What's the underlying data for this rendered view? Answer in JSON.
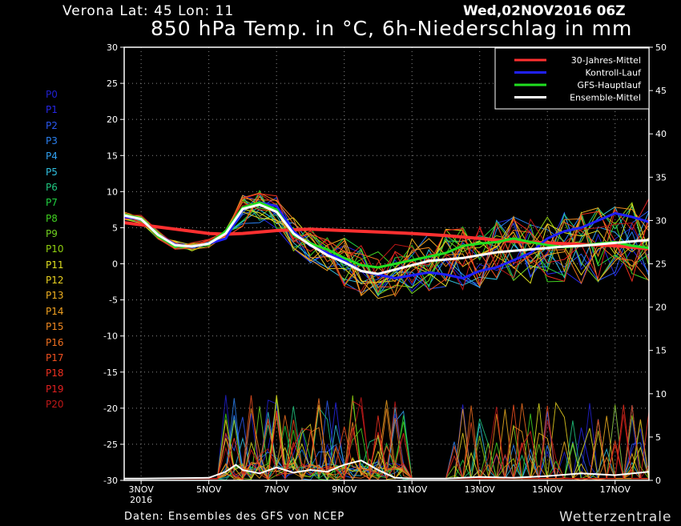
{
  "header": {
    "location": "Verona   Lat: 45 Lon: 11",
    "date": "Wed,02NOV2016 06Z",
    "title": "850 hPa Temp. in °C, 6h-Niederschlag in mm"
  },
  "footer": {
    "source": "Daten: Ensembles des GFS von NCEP",
    "brand": "Wetterzentrale"
  },
  "members": [
    {
      "label": "P0",
      "color": "#2020d0"
    },
    {
      "label": "P1",
      "color": "#2626e6"
    },
    {
      "label": "P2",
      "color": "#2a58f0"
    },
    {
      "label": "P3",
      "color": "#2a80f0"
    },
    {
      "label": "P4",
      "color": "#30a0f0"
    },
    {
      "label": "P5",
      "color": "#30c0e0"
    },
    {
      "label": "P6",
      "color": "#20c880"
    },
    {
      "label": "P7",
      "color": "#20d040"
    },
    {
      "label": "P8",
      "color": "#40d020"
    },
    {
      "label": "P9",
      "color": "#70d020"
    },
    {
      "label": "P10",
      "color": "#90d010"
    },
    {
      "label": "P11",
      "color": "#e0e020"
    },
    {
      "label": "P12",
      "color": "#e8d020"
    },
    {
      "label": "P13",
      "color": "#f0b020"
    },
    {
      "label": "P14",
      "color": "#f0a020"
    },
    {
      "label": "P15",
      "color": "#f08820"
    },
    {
      "label": "P16",
      "color": "#f07020"
    },
    {
      "label": "P17",
      "color": "#f05020"
    },
    {
      "label": "P18",
      "color": "#f03020"
    },
    {
      "label": "P19",
      "color": "#e02020"
    },
    {
      "label": "P20",
      "color": "#c01818"
    }
  ],
  "chart_data": {
    "type": "line",
    "x_ticks": [
      "3NOV",
      "5NOV",
      "7NOV",
      "9NOV",
      "11NOV",
      "13NOV",
      "15NOV",
      "17NOV"
    ],
    "x_tick_sub": "2016",
    "x_range_days": [
      2.5,
      18.0
    ],
    "y_left": {
      "label": "850 hPa Temp. in °C",
      "range": [
        -30,
        30
      ],
      "ticks": [
        30,
        25,
        20,
        15,
        10,
        5,
        0,
        -5,
        -10,
        -15,
        -20,
        -25,
        -30
      ]
    },
    "y_right": {
      "label": "6h-Niederschlag in mm",
      "range": [
        0,
        50
      ],
      "ticks": [
        50,
        45,
        40,
        35,
        30,
        25,
        20,
        15,
        10,
        5,
        0
      ]
    },
    "grid": true,
    "legend_position": "top-right",
    "series": [
      {
        "name": "30-Jahres-Mittel",
        "color": "#ff3030",
        "width": 4,
        "axis": "temp",
        "x": [
          2.5,
          3.0,
          3.5,
          4.0,
          4.5,
          5.0,
          5.5,
          6.0,
          7.0,
          8.0,
          9.0,
          10.0,
          11.0,
          12.0,
          13.0,
          14.0,
          15.0,
          16.0,
          17.0,
          18.0
        ],
        "y": [
          5.7,
          5.4,
          5.1,
          4.8,
          4.5,
          4.2,
          4.1,
          4.2,
          4.6,
          4.8,
          4.6,
          4.4,
          4.2,
          3.9,
          3.5,
          3.1,
          2.9,
          2.7,
          2.5,
          2.1
        ]
      },
      {
        "name": "Kontroll-Lauf",
        "color": "#2020ff",
        "width": 3,
        "axis": "temp",
        "x": [
          2.5,
          3.0,
          3.5,
          4.0,
          4.5,
          5.0,
          5.5,
          6.0,
          6.5,
          7.0,
          7.5,
          8.0,
          8.5,
          9.0,
          9.5,
          10.0,
          10.5,
          11.0,
          11.5,
          12.0,
          12.5,
          13.0,
          13.5,
          14.0,
          14.5,
          15.0,
          15.5,
          16.0,
          16.5,
          17.0,
          17.5,
          18.0
        ],
        "y": [
          6.5,
          6.2,
          4.0,
          2.7,
          2.3,
          2.8,
          3.5,
          7.5,
          8.5,
          8.0,
          4.5,
          2.5,
          1.5,
          0.5,
          -1.0,
          -1.5,
          -2.0,
          -1.6,
          -1.2,
          -1.5,
          -2.0,
          -1.0,
          -0.5,
          0.5,
          1.5,
          3.5,
          4.5,
          5.0,
          6.0,
          7.0,
          6.5,
          5.8
        ]
      },
      {
        "name": "GFS-Hauptlauf",
        "color": "#20e020",
        "width": 3,
        "axis": "temp",
        "x": [
          2.5,
          3.0,
          3.5,
          4.0,
          4.5,
          5.0,
          5.5,
          6.0,
          6.5,
          7.0,
          7.5,
          8.0,
          8.5,
          9.0,
          9.5,
          10.0,
          10.5,
          11.0,
          11.5,
          12.0,
          12.5,
          13.0,
          13.5,
          14.0,
          14.5,
          15.0,
          15.5,
          16.0,
          16.5,
          17.0,
          17.5,
          18.0
        ],
        "y": [
          6.8,
          6.3,
          3.8,
          2.5,
          2.4,
          2.8,
          4.5,
          7.8,
          8.5,
          7.5,
          4.0,
          2.8,
          2.0,
          0.8,
          -0.2,
          -0.5,
          0.0,
          0.5,
          1.0,
          1.5,
          2.5,
          2.8,
          3.0,
          3.5,
          3.0,
          2.6,
          2.3,
          2.5,
          2.8,
          3.0,
          2.5,
          2.2
        ]
      },
      {
        "name": "Ensemble-Mittel",
        "color": "#ffffff",
        "width": 3,
        "axis": "temp",
        "x": [
          2.5,
          3.0,
          3.5,
          4.0,
          4.5,
          5.0,
          5.5,
          6.0,
          6.5,
          7.0,
          7.5,
          8.0,
          8.5,
          9.0,
          9.5,
          10.0,
          10.5,
          11.0,
          11.5,
          12.0,
          12.5,
          13.0,
          13.5,
          14.0,
          14.5,
          15.0,
          15.5,
          16.0,
          16.5,
          17.0,
          17.5,
          18.0
        ],
        "y": [
          6.7,
          6.2,
          4.0,
          2.6,
          2.4,
          2.8,
          4.2,
          7.6,
          8.2,
          7.2,
          4.2,
          2.6,
          1.2,
          0.2,
          -1.0,
          -1.4,
          -0.8,
          -0.2,
          0.4,
          0.6,
          0.8,
          1.2,
          1.6,
          1.8,
          2.0,
          2.2,
          2.4,
          2.5,
          2.7,
          2.9,
          3.1,
          3.3
        ]
      },
      {
        "name": "",
        "color": "#ffffff",
        "width": 2,
        "axis": "precip",
        "x": [
          2.5,
          3.0,
          5.0,
          5.5,
          5.8,
          6.0,
          6.5,
          7.0,
          7.5,
          8.0,
          8.5,
          9.0,
          9.5,
          10.0,
          10.5,
          11.0,
          12.0,
          13.0,
          14.0,
          15.0,
          16.0,
          17.0,
          18.0
        ],
        "y": [
          0.2,
          0.2,
          0.3,
          1.0,
          1.8,
          1.2,
          0.8,
          1.5,
          0.9,
          1.2,
          1.0,
          1.8,
          2.3,
          1.2,
          0.3,
          0.2,
          0.2,
          0.4,
          0.3,
          0.5,
          0.8,
          0.6,
          1.0
        ]
      }
    ],
    "ensemble_spread": true
  }
}
